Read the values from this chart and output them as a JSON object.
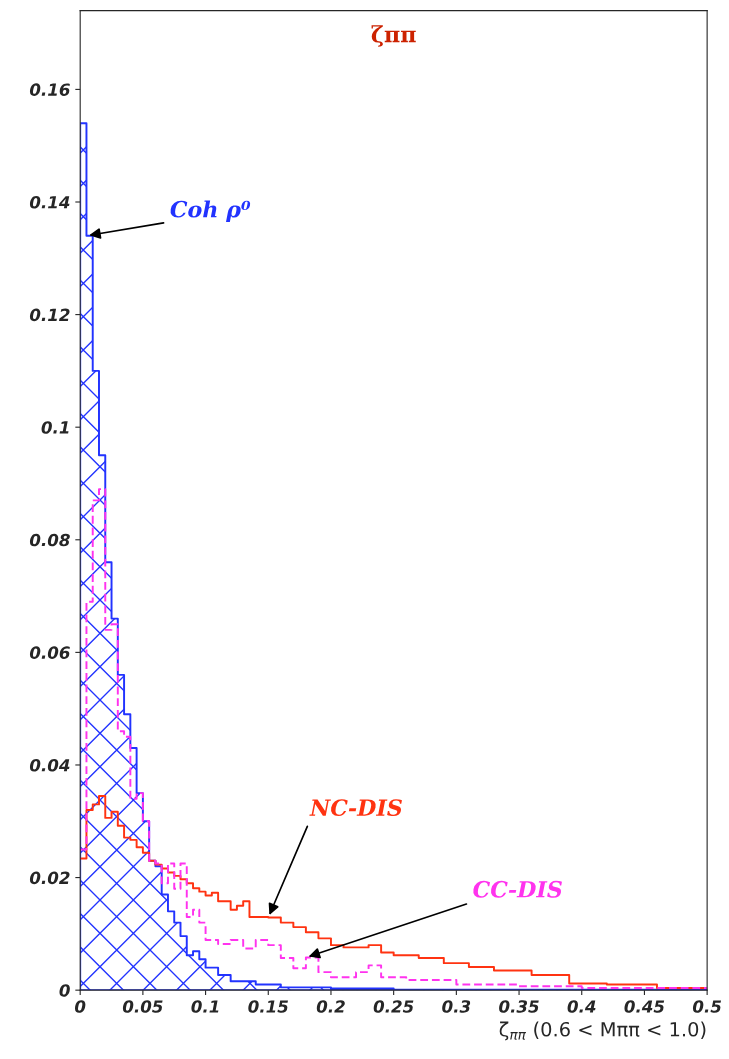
{
  "chart_data": {
    "type": "step",
    "title": "ζππ",
    "xlabel": "ζ$_{ππ}$ (0.6 < Mππ < 1.0)",
    "xlim": [
      0,
      0.5
    ],
    "ylim": [
      0,
      0.174
    ],
    "xticks": [
      {
        "value": 0,
        "label": "0"
      },
      0.05,
      0.1,
      0.15,
      0.2,
      0.25,
      0.3,
      0.35,
      0.4,
      0.45,
      0.5
    ],
    "yticks": [
      {
        "value": 0,
        "label": "0"
      },
      0.02,
      0.04,
      0.06,
      0.08,
      0.1,
      0.12,
      0.14,
      0.16
    ],
    "grid": false,
    "legend": false,
    "series": [
      {
        "type": "area",
        "color": "#2233ff",
        "line_style": "solid",
        "x": [
          0,
          0.005,
          0.01,
          0.015,
          0.02,
          0.025,
          0.03,
          0.035,
          0.04,
          0.045,
          0.05,
          0.055,
          0.06,
          0.065,
          0.07,
          0.075,
          0.08,
          0.085,
          0.09,
          0.095,
          0.1,
          0.11,
          0.12,
          0.14,
          0.16,
          0.2,
          0.25,
          0.5
        ],
        "values": [
          0.154,
          0.134,
          0.11,
          0.095,
          0.076,
          0.066,
          0.056,
          0.049,
          0.043,
          0.035,
          0.03,
          0.023,
          0.022,
          0.017,
          0.014,
          0.012,
          0.0096,
          0.0062,
          0.0069,
          0.0055,
          0.004,
          0.0027,
          0.0016,
          0.001,
          0.0005,
          0.0003,
          0.0001,
          0.0001
        ]
      },
      {
        "color": "#ff3311",
        "line_style": "solid",
        "x": [
          0,
          0.005,
          0.01,
          0.015,
          0.02,
          0.025,
          0.03,
          0.035,
          0.04,
          0.045,
          0.05,
          0.055,
          0.06,
          0.065,
          0.07,
          0.075,
          0.08,
          0.085,
          0.09,
          0.095,
          0.1,
          0.105,
          0.11,
          0.12,
          0.125,
          0.13,
          0.135,
          0.15,
          0.16,
          0.17,
          0.18,
          0.19,
          0.2,
          0.21,
          0.23,
          0.24,
          0.25,
          0.27,
          0.29,
          0.31,
          0.33,
          0.36,
          0.39,
          0.42,
          0.46,
          0.5
        ],
        "values": [
          0.0234,
          0.032,
          0.033,
          0.0345,
          0.0306,
          0.0317,
          0.0292,
          0.0271,
          0.0267,
          0.0254,
          0.0244,
          0.023,
          0.0223,
          0.0216,
          0.0209,
          0.0203,
          0.0197,
          0.019,
          0.0181,
          0.0175,
          0.0168,
          0.0173,
          0.0158,
          0.0143,
          0.015,
          0.0158,
          0.013,
          0.0129,
          0.012,
          0.0112,
          0.0103,
          0.0092,
          0.008,
          0.0076,
          0.008,
          0.0067,
          0.0062,
          0.0057,
          0.0048,
          0.0041,
          0.0035,
          0.0027,
          0.0012,
          0.001,
          0.0004,
          0.0004
        ]
      },
      {
        "color": "#ff33ee",
        "line_style": "dashed",
        "x": [
          0,
          0.005,
          0.01,
          0.015,
          0.02,
          0.025,
          0.03,
          0.035,
          0.04,
          0.045,
          0.05,
          0.055,
          0.06,
          0.065,
          0.07,
          0.075,
          0.08,
          0.085,
          0.09,
          0.095,
          0.1,
          0.11,
          0.12,
          0.13,
          0.14,
          0.15,
          0.16,
          0.17,
          0.18,
          0.19,
          0.2,
          0.22,
          0.23,
          0.24,
          0.26,
          0.3,
          0.35,
          0.4,
          0.5
        ],
        "values": [
          0.025,
          0.069,
          0.087,
          0.089,
          0.064,
          0.065,
          0.046,
          0.045,
          0.034,
          0.035,
          0.03,
          0.023,
          0.0225,
          0.019,
          0.0225,
          0.018,
          0.0225,
          0.013,
          0.0143,
          0.012,
          0.0089,
          0.0082,
          0.0089,
          0.0074,
          0.0089,
          0.008,
          0.0057,
          0.0039,
          0.0058,
          0.0032,
          0.0023,
          0.0032,
          0.0044,
          0.0023,
          0.0018,
          0.001,
          0.0007,
          0.0004,
          0.0004
        ]
      }
    ],
    "annotations": [
      {
        "text": "Coh ρ⁰",
        "x": 0.005,
        "y": 0.134
      },
      {
        "text": "NC-DIS",
        "x": 0.15,
        "y": 0.0129
      },
      {
        "text": "CC-DIS",
        "x": 0.18,
        "y": 0.0058
      }
    ]
  }
}
